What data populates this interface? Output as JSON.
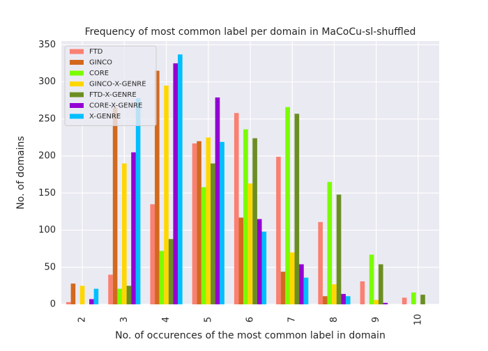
{
  "chart_data": {
    "type": "bar",
    "title": "Frequency of most common label per domain in MaCoCu-sl-shuffled",
    "x_label": "No. of occurences of the most common label in domain",
    "y_label": "No. of domains",
    "categories": [
      "2",
      "3",
      "4",
      "5",
      "6",
      "7",
      "8",
      "9",
      "10"
    ],
    "series": [
      {
        "name": "FTD",
        "color": "#fa8072",
        "values": [
          3,
          40,
          135,
          217,
          258,
          199,
          111,
          31,
          9
        ]
      },
      {
        "name": "GINCO",
        "color": "#d2691e",
        "values": [
          28,
          265,
          315,
          220,
          117,
          44,
          11,
          0,
          0
        ]
      },
      {
        "name": "CORE",
        "color": "#7cfc00",
        "values": [
          0,
          21,
          72,
          158,
          236,
          266,
          165,
          67,
          16
        ]
      },
      {
        "name": "GINCO-X-GENRE",
        "color": "#ffd700",
        "values": [
          25,
          190,
          295,
          225,
          163,
          70,
          27,
          6,
          0
        ]
      },
      {
        "name": "FTD-X-GENRE",
        "color": "#6b8e23",
        "values": [
          0,
          25,
          88,
          190,
          224,
          257,
          148,
          54,
          13
        ]
      },
      {
        "name": "CORE-X-GENRE",
        "color": "#9400d3",
        "values": [
          7,
          205,
          325,
          279,
          115,
          54,
          14,
          2,
          0
        ]
      },
      {
        "name": "X-GENRE",
        "color": "#00bfff",
        "values": [
          21,
          278,
          337,
          219,
          98,
          36,
          11,
          0,
          0
        ]
      }
    ],
    "ylim": [
      0,
      355
    ],
    "yticks": [
      0,
      50,
      100,
      150,
      200,
      250,
      300,
      350
    ],
    "grid": true,
    "legend": "upper-left"
  }
}
